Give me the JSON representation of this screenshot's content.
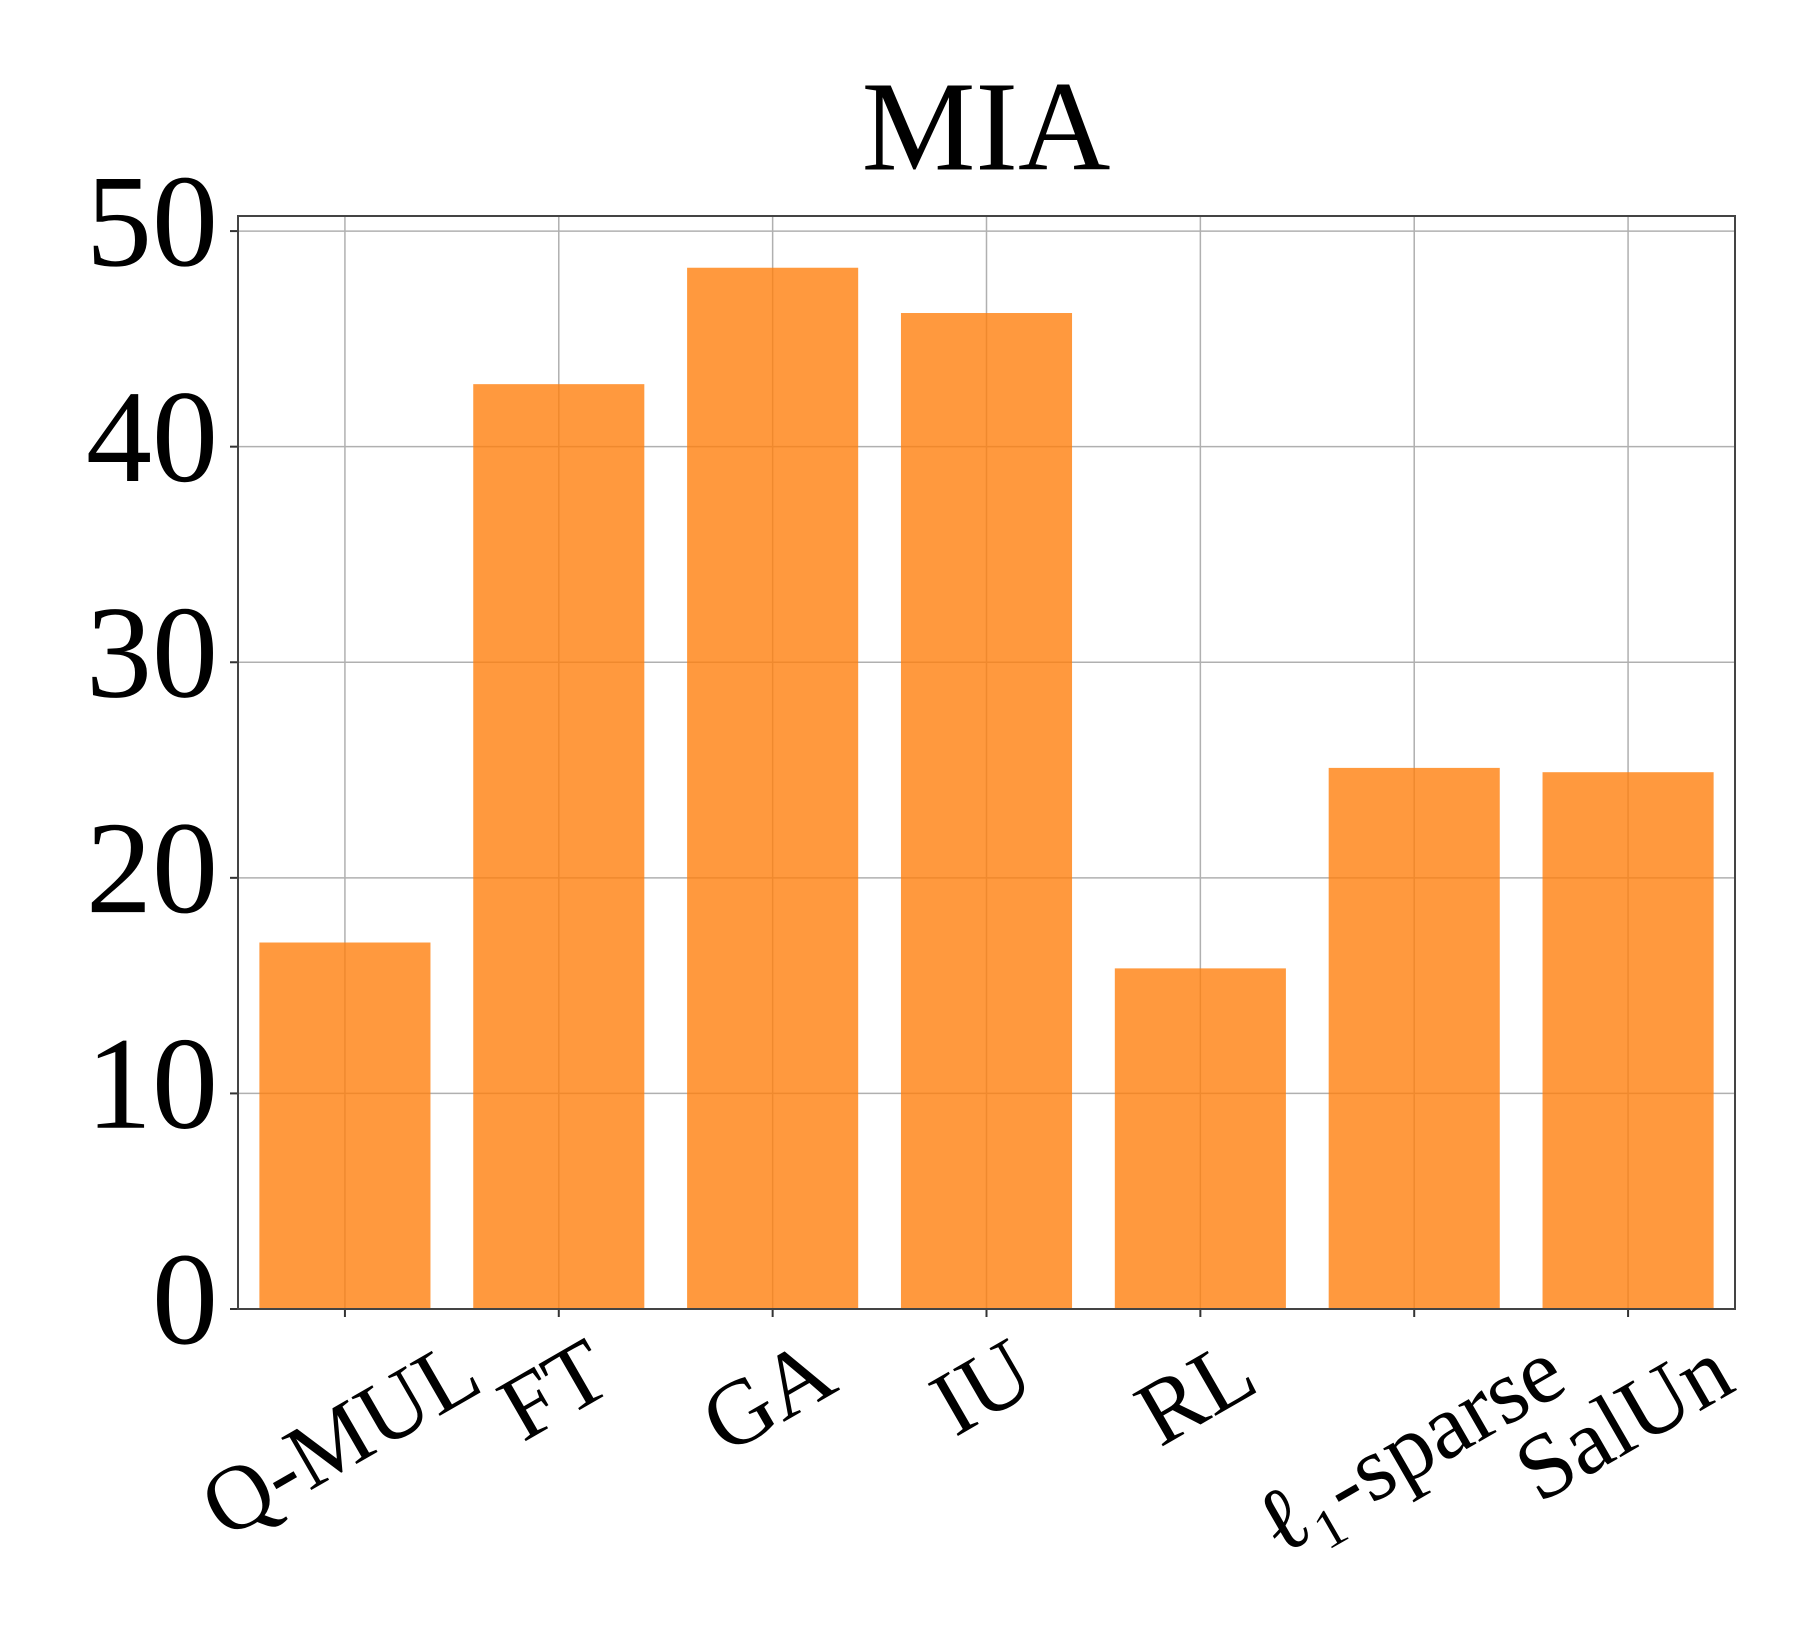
{
  "chart_data": {
    "type": "bar",
    "title": "MIA",
    "categories": [
      "Q-MUL",
      "FT",
      "GA",
      "IU",
      "RL",
      "ℓ₁-sparse",
      "SalUn"
    ],
    "values": [
      17.0,
      42.9,
      48.3,
      46.2,
      15.8,
      25.1,
      24.9
    ],
    "color": "#ff7f0e",
    "ylim": [
      0,
      50.7
    ],
    "yticks": [
      0,
      10,
      20,
      30,
      40,
      50
    ],
    "grid": true
  }
}
